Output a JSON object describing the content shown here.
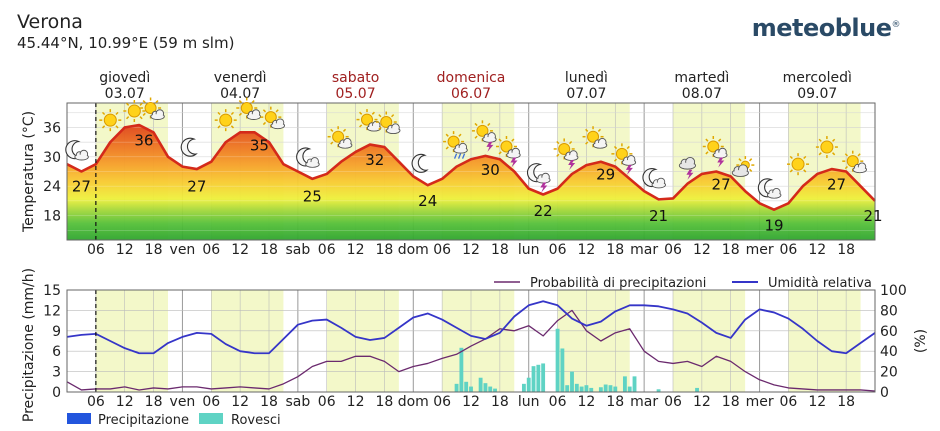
{
  "header": {
    "location": "Verona",
    "coords": "45.44°N, 10.99°E (59 m slm)",
    "brand": "meteoblue",
    "brand_mark": "®"
  },
  "days": [
    {
      "name": "giovedì",
      "date": "03.07",
      "weekend": false
    },
    {
      "name": "venerdì",
      "date": "04.07",
      "weekend": false
    },
    {
      "name": "sabato",
      "date": "05.07",
      "weekend": true
    },
    {
      "name": "domenica",
      "date": "06.07",
      "weekend": true
    },
    {
      "name": "lunedì",
      "date": "07.07",
      "weekend": false
    },
    {
      "name": "martedì",
      "date": "08.07",
      "weekend": false
    },
    {
      "name": "mercoledì",
      "date": "09.07",
      "weekend": false
    }
  ],
  "colors": {
    "temperature_line": "#d42a1a",
    "daytime_band": "#f3f8c9",
    "precipitation": "#2255dd",
    "showers": "#5fd3c4",
    "precip_probability": "#6b2a6e",
    "humidity": "#3535c8",
    "weekend_text": "#a02020",
    "grid": "#bbbbbb"
  },
  "chart_data": [
    {
      "type": "line",
      "name": "temperature",
      "ylabel": "Temperatura (°C)",
      "ylim": [
        13,
        41
      ],
      "yticks": [
        18,
        24,
        30,
        36
      ],
      "x_unit": "hour from 03.07 00:00 (local)",
      "xlim": [
        0,
        168
      ],
      "x_tick_labels": [
        "06",
        "12",
        "18",
        "ven",
        "06",
        "12",
        "18",
        "sab",
        "06",
        "12",
        "18",
        "dom",
        "06",
        "12",
        "18",
        "lun",
        "06",
        "12",
        "18",
        "mar",
        "06",
        "12",
        "18",
        "mer",
        "06",
        "12",
        "18"
      ],
      "current_time_marker": 6,
      "daily_labels": [
        {
          "x": 3,
          "value": "27"
        },
        {
          "x": 16,
          "value": "36"
        },
        {
          "x": 27,
          "value": "27"
        },
        {
          "x": 40,
          "value": "35"
        },
        {
          "x": 51,
          "value": "25"
        },
        {
          "x": 64,
          "value": "32"
        },
        {
          "x": 75,
          "value": "24"
        },
        {
          "x": 88,
          "value": "30"
        },
        {
          "x": 99,
          "value": "22"
        },
        {
          "x": 112,
          "value": "29"
        },
        {
          "x": 123,
          "value": "21"
        },
        {
          "x": 136,
          "value": "27"
        },
        {
          "x": 147,
          "value": "19"
        },
        {
          "x": 160,
          "value": "27"
        },
        {
          "x": 168,
          "value": "21"
        }
      ],
      "series": [
        {
          "x": [
            0,
            3,
            6,
            9,
            12,
            15,
            18,
            21,
            24,
            27,
            30,
            33,
            36,
            39,
            42,
            45,
            48,
            51,
            54,
            57,
            60,
            63,
            66,
            69,
            72,
            75,
            78,
            81,
            84,
            87,
            90,
            93,
            96,
            99,
            102,
            105,
            108,
            111,
            114,
            117,
            120,
            123,
            126,
            129,
            132,
            135,
            138,
            141,
            144,
            147,
            150,
            153,
            156,
            159,
            162,
            165,
            168
          ],
          "y": [
            28.5,
            27,
            28.5,
            33,
            36,
            36.5,
            35,
            30,
            28,
            27.5,
            29,
            33,
            35,
            35,
            33,
            28.5,
            27,
            25.5,
            26.5,
            29,
            31,
            32.5,
            32,
            29,
            26,
            24.2,
            25.5,
            28,
            29.5,
            30.2,
            29.5,
            27,
            23.5,
            22.3,
            23.5,
            26.5,
            28.3,
            29,
            28,
            25.5,
            23,
            21.3,
            21.5,
            24.5,
            26.5,
            27,
            26,
            23,
            20.5,
            19.2,
            20.5,
            24,
            26.5,
            27.5,
            27,
            24,
            21
          ]
        }
      ],
      "weather_icons": [
        {
          "x": 2,
          "icon": "moon-cloud-icon"
        },
        {
          "x": 9,
          "icon": "sun-icon"
        },
        {
          "x": 14,
          "icon": "sun-icon"
        },
        {
          "x": 18,
          "icon": "sun-cloud-icon"
        },
        {
          "x": 26,
          "icon": "moon-icon"
        },
        {
          "x": 33,
          "icon": "sun-icon"
        },
        {
          "x": 38,
          "icon": "sun-cloud-icon"
        },
        {
          "x": 43,
          "icon": "sun-cloud-icon"
        },
        {
          "x": 50,
          "icon": "moon-cloud-icon"
        },
        {
          "x": 57,
          "icon": "sun-cloud-icon"
        },
        {
          "x": 63,
          "icon": "sun-cloud-icon"
        },
        {
          "x": 67,
          "icon": "sun-cloud-icon"
        },
        {
          "x": 74,
          "icon": "moon-icon"
        },
        {
          "x": 81,
          "icon": "sun-cloud-rain-icon"
        },
        {
          "x": 87,
          "icon": "sun-cloud-thunder-icon"
        },
        {
          "x": 92,
          "icon": "sun-cloud-thunder-icon"
        },
        {
          "x": 98,
          "icon": "moon-cloud-thunder-icon"
        },
        {
          "x": 104,
          "icon": "sun-cloud-thunder-icon"
        },
        {
          "x": 110,
          "icon": "sun-cloud-icon"
        },
        {
          "x": 116,
          "icon": "sun-cloud-thunder-icon"
        },
        {
          "x": 122,
          "icon": "moon-cloud-icon"
        },
        {
          "x": 129,
          "icon": "cloud-thunder-icon"
        },
        {
          "x": 135,
          "icon": "sun-cloud-thunder-icon"
        },
        {
          "x": 140,
          "icon": "cloud-sun-icon"
        },
        {
          "x": 146,
          "icon": "moon-cloud-icon"
        },
        {
          "x": 152,
          "icon": "sun-icon"
        },
        {
          "x": 158,
          "icon": "sun-icon"
        },
        {
          "x": 164,
          "icon": "sun-cloud-icon"
        }
      ]
    },
    {
      "type": "bar",
      "name": "precipitation",
      "ylabel": "Precipitazione (mm/h)",
      "y2label": "(%)",
      "ylim": [
        0,
        15
      ],
      "yticks": [
        0,
        3,
        6,
        9,
        12,
        15
      ],
      "y2lim": [
        0,
        100
      ],
      "y2ticks": [
        0,
        20,
        40,
        60,
        80,
        100
      ],
      "xlim": [
        0,
        168
      ],
      "current_time_marker": 6,
      "legend": {
        "top": [
          "Probabilità di precipitazioni",
          "Umidità relativa"
        ],
        "bottom": [
          "Precipitazione",
          "Rovesci"
        ]
      },
      "showers": {
        "x": [
          81,
          82,
          83,
          84,
          86,
          87,
          88,
          89,
          95,
          96,
          97,
          98,
          99,
          102,
          103,
          104,
          105,
          106,
          107,
          108,
          109,
          111,
          112,
          113,
          114,
          116,
          117,
          118,
          123,
          131
        ],
        "y": [
          1.2,
          6.5,
          1.5,
          0.8,
          2.1,
          1.3,
          0.8,
          0.5,
          1.2,
          2.1,
          3.8,
          4.0,
          4.2,
          9.3,
          6.4,
          1.0,
          3.0,
          1.2,
          0.8,
          1.0,
          0.6,
          0.7,
          1.1,
          1.0,
          0.8,
          2.3,
          0.8,
          2.3,
          0.4,
          0.6
        ]
      },
      "precipitation": {
        "x": [],
        "y": []
      },
      "series": [
        {
          "name": "Probabilità di precipitazioni",
          "x": [
            0,
            3,
            6,
            9,
            12,
            15,
            18,
            21,
            24,
            27,
            30,
            33,
            36,
            39,
            42,
            45,
            48,
            51,
            54,
            57,
            60,
            63,
            66,
            69,
            72,
            75,
            78,
            81,
            84,
            87,
            90,
            93,
            96,
            99,
            102,
            105,
            108,
            111,
            114,
            117,
            120,
            123,
            126,
            129,
            132,
            135,
            138,
            141,
            144,
            147,
            150,
            153,
            156,
            159,
            162,
            165,
            168
          ],
          "y": [
            10,
            2,
            3,
            3,
            5,
            2,
            4,
            3,
            5,
            5,
            3,
            4,
            5,
            4,
            3,
            8,
            15,
            25,
            30,
            30,
            35,
            35,
            30,
            20,
            25,
            28,
            33,
            37,
            45,
            52,
            62,
            60,
            65,
            55,
            70,
            80,
            60,
            50,
            58,
            62,
            40,
            30,
            28,
            30,
            25,
            35,
            30,
            20,
            12,
            7,
            4,
            3,
            2,
            2,
            2,
            2,
            1
          ]
        },
        {
          "name": "Umidità relativa",
          "x": [
            0,
            3,
            6,
            9,
            12,
            15,
            18,
            21,
            24,
            27,
            30,
            33,
            36,
            39,
            42,
            45,
            48,
            51,
            54,
            57,
            60,
            63,
            66,
            69,
            72,
            75,
            78,
            81,
            84,
            87,
            90,
            93,
            96,
            99,
            102,
            105,
            108,
            111,
            114,
            117,
            120,
            123,
            126,
            129,
            132,
            135,
            138,
            141,
            144,
            147,
            150,
            153,
            156,
            159,
            162,
            165,
            168
          ],
          "y": [
            54,
            56,
            57,
            50,
            43,
            38,
            38,
            48,
            54,
            58,
            57,
            47,
            40,
            38,
            38,
            52,
            66,
            70,
            71,
            63,
            54,
            51,
            53,
            63,
            73,
            77,
            71,
            63,
            55,
            52,
            58,
            74,
            85,
            89,
            85,
            72,
            65,
            69,
            79,
            85,
            85,
            84,
            81,
            77,
            68,
            58,
            53,
            71,
            81,
            78,
            72,
            62,
            50,
            40,
            38,
            48,
            58
          ]
        }
      ]
    }
  ]
}
